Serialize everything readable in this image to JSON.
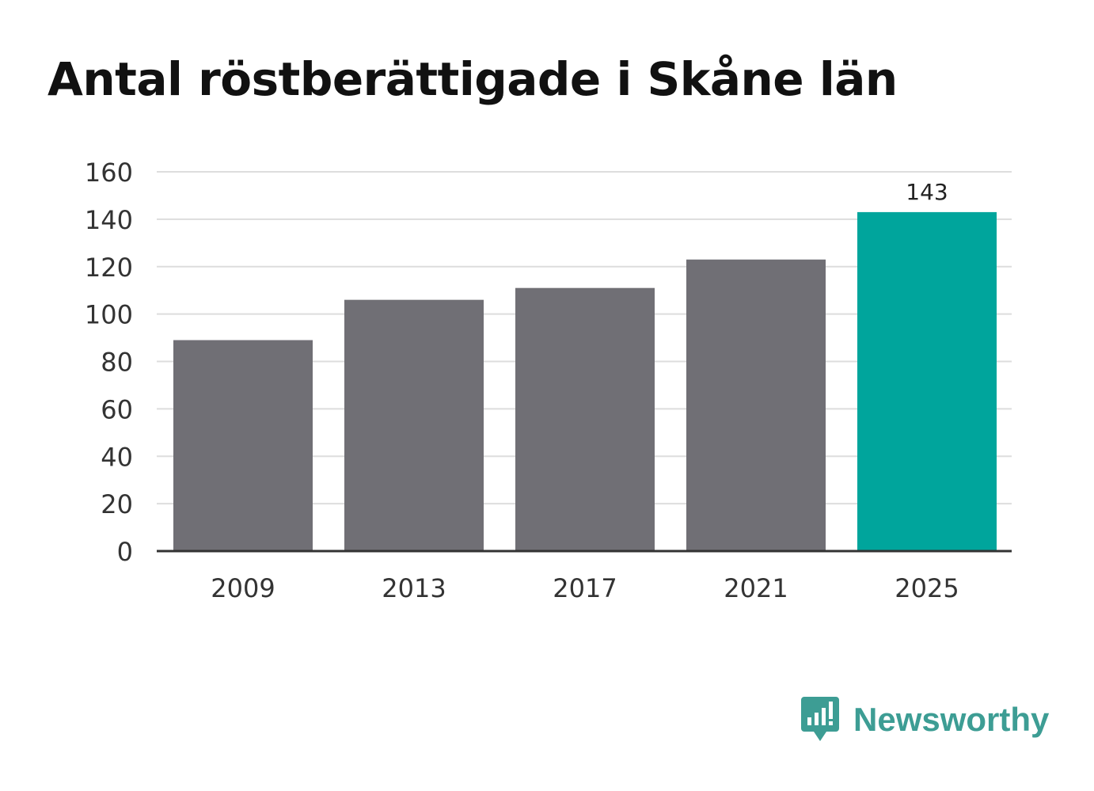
{
  "chart_data": {
    "type": "bar",
    "title": "Antal röstberättigade i Skåne län",
    "xlabel": "",
    "ylabel": "",
    "categories": [
      "2009",
      "2013",
      "2017",
      "2021",
      "2025"
    ],
    "values": [
      89,
      106,
      111,
      123,
      143
    ],
    "ylim": [
      0,
      160
    ],
    "yticks": [
      0,
      20,
      40,
      60,
      80,
      100,
      120,
      140,
      160
    ],
    "highlight_index": 4,
    "value_labels": [
      null,
      null,
      null,
      null,
      "143"
    ],
    "grid": true,
    "legend": "none",
    "colors": {
      "bar": "#706f75",
      "highlight": "#00a59c",
      "grid": "#dddddd",
      "axis": "#333333"
    }
  },
  "brand": {
    "name": "Newsworthy",
    "icon": "newsworthy-logo-icon",
    "color": "#3d9d94"
  }
}
